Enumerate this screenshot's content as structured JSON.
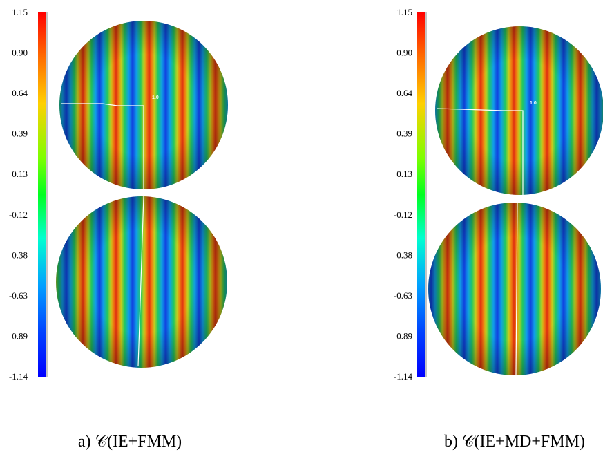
{
  "panels": [
    {
      "caption": "a) 𝒞(IE+FMM)",
      "colorbar_labels": [
        "1.15",
        "0.90",
        "0.64",
        "0.39",
        "0.13",
        "-0.12",
        "-0.38",
        "-0.63",
        "-0.89",
        "-1.14"
      ],
      "marker_label": "1.0"
    },
    {
      "caption": "b) 𝒞(IE+MD+FMM)",
      "colorbar_labels": [
        "1.15",
        "0.90",
        "0.64",
        "0.39",
        "0.13",
        "-0.12",
        "-0.38",
        "-0.63",
        "-0.89",
        "-1.14"
      ],
      "marker_label": "1.0"
    }
  ]
}
